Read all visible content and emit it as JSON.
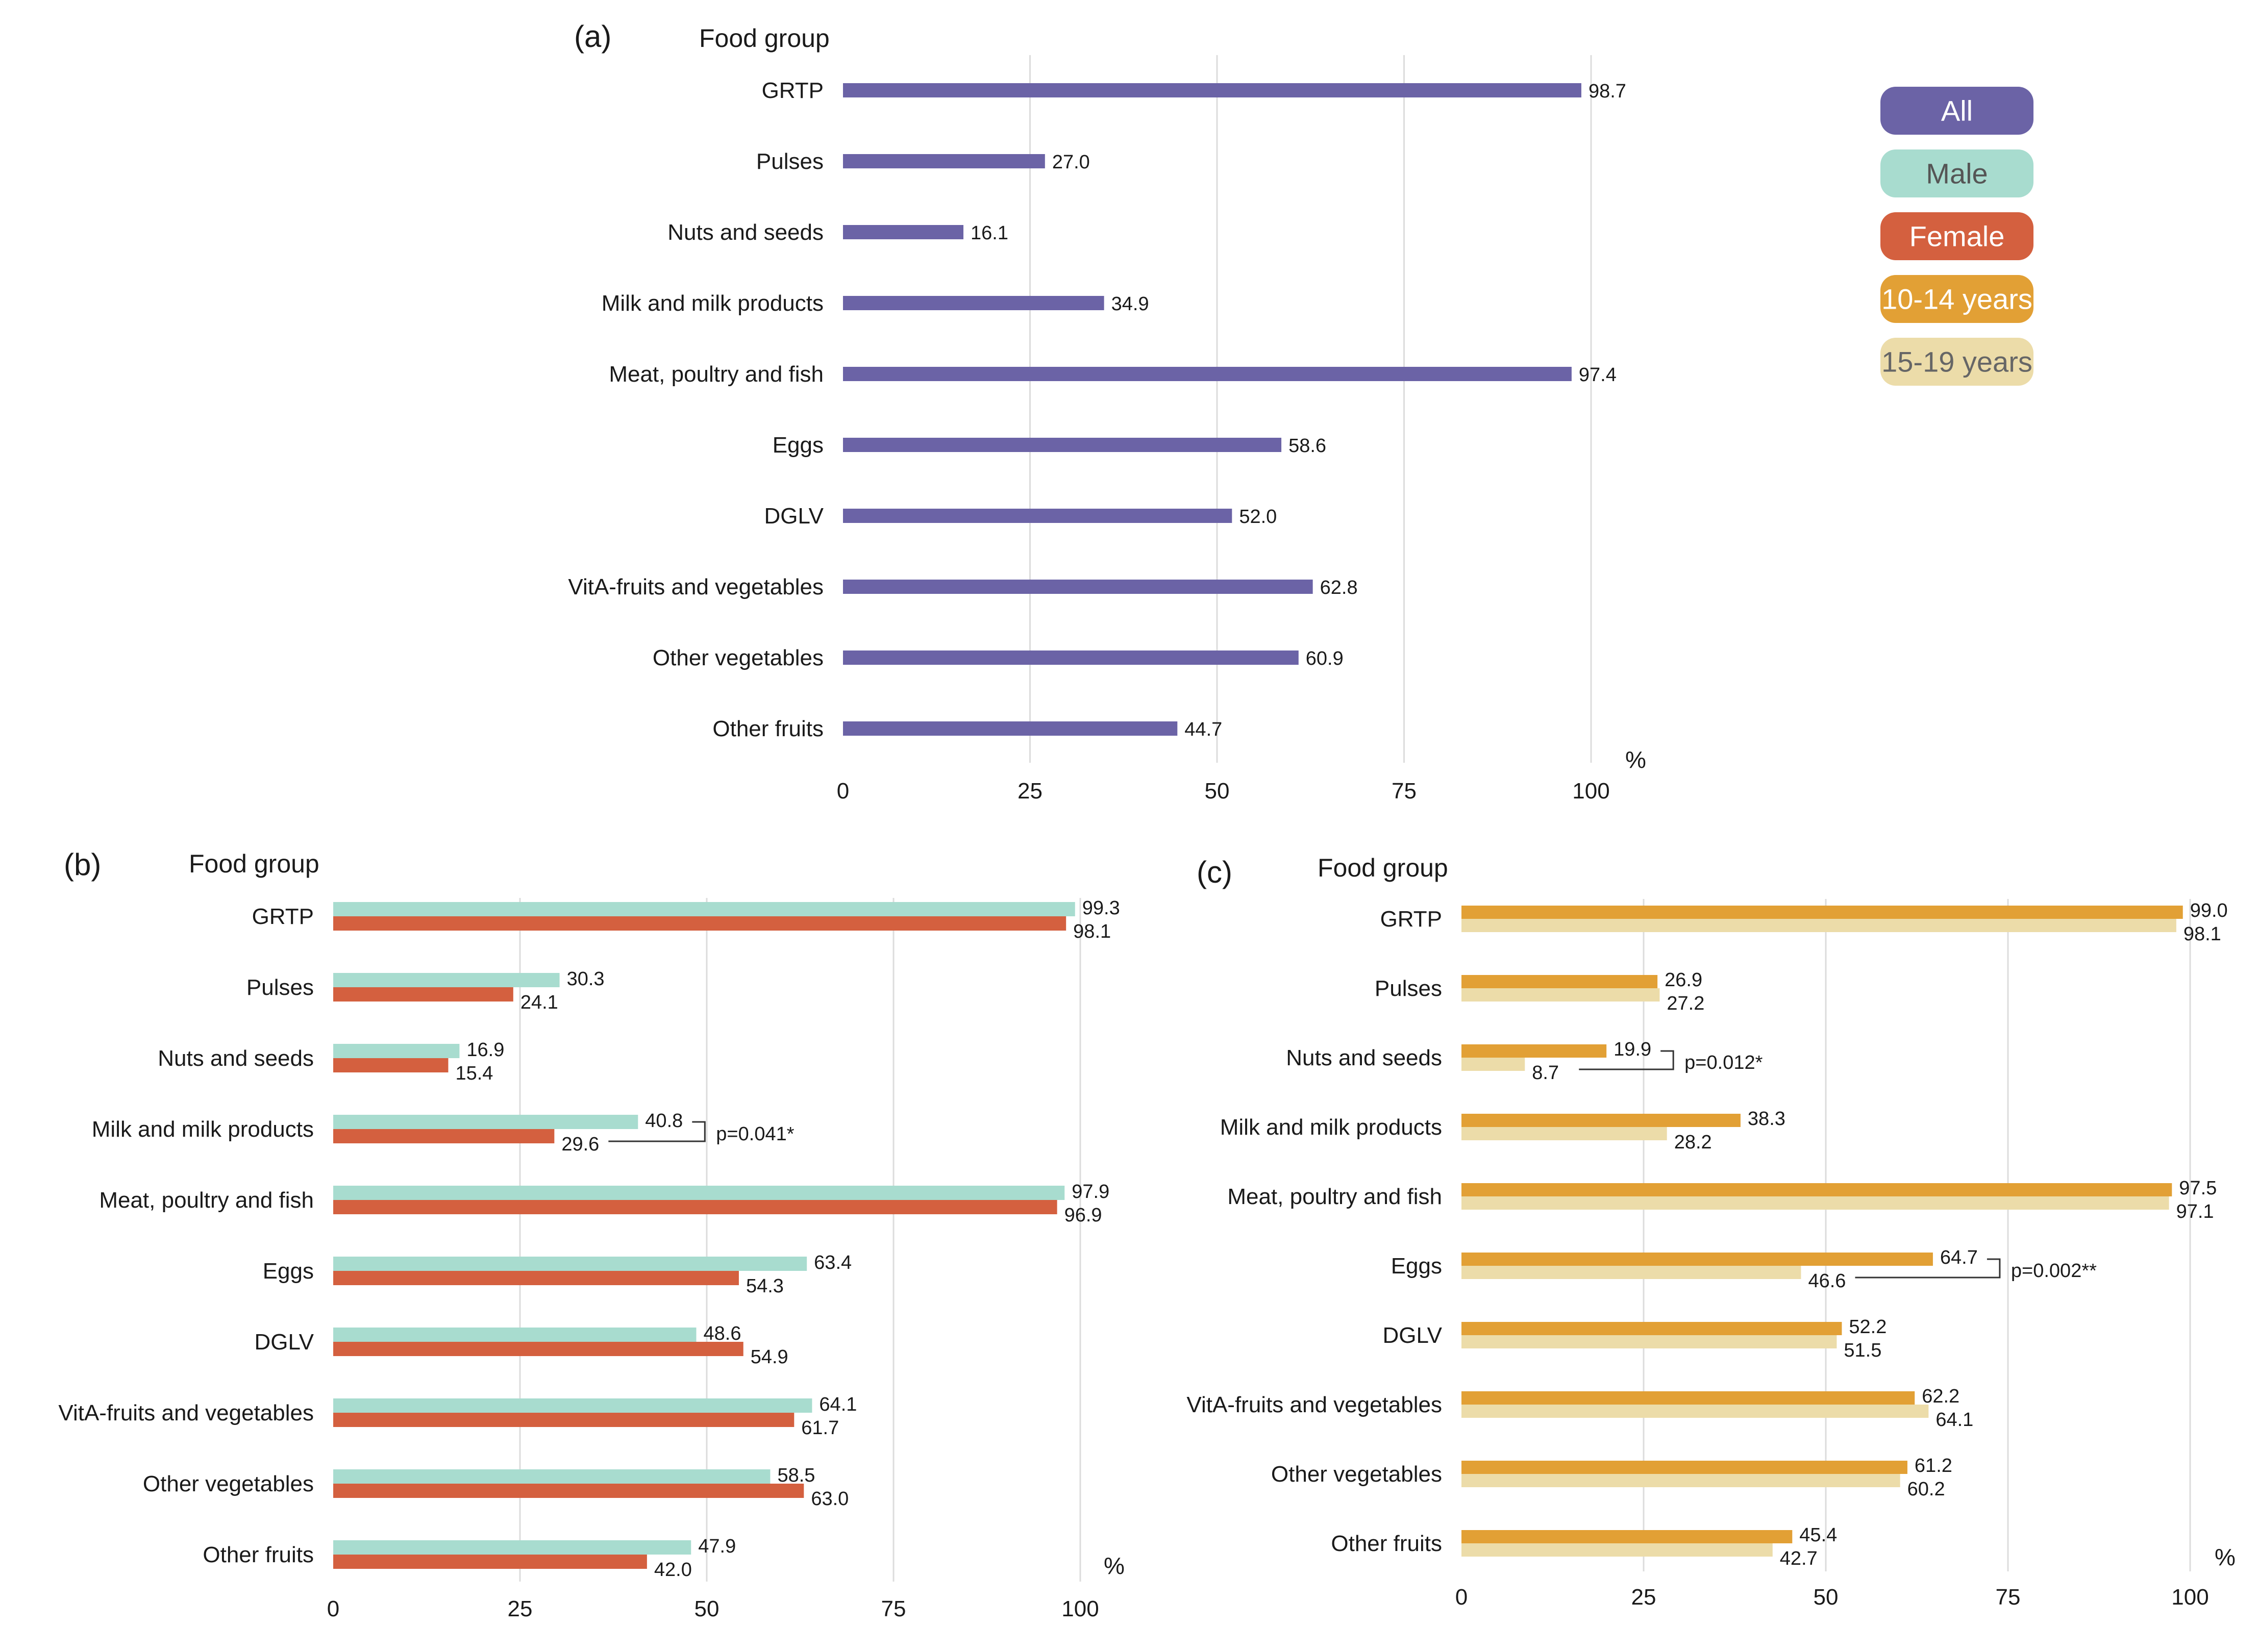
{
  "legend": [
    {
      "label": "All",
      "color": "#6b63a6",
      "text_color": "#ffffff"
    },
    {
      "label": "Male",
      "color": "#a8dccf",
      "text_color": "#555555"
    },
    {
      "label": "Female",
      "color": "#d4603f",
      "text_color": "#ffffff"
    },
    {
      "label": "10-14 years",
      "color": "#e2a035",
      "text_color": "#ffffff"
    },
    {
      "label": "15-19 years",
      "color": "#ecdca9",
      "text_color": "#666666"
    }
  ],
  "chart_data": [
    {
      "id": "a",
      "panel_label": "(a)",
      "type": "bar",
      "orientation": "horizontal",
      "ylabel": "Food group",
      "xlabel": "%",
      "xlim": [
        0,
        100
      ],
      "xticks": [
        0,
        25,
        50,
        75,
        100
      ],
      "categories": [
        "GRTP",
        "Pulses",
        "Nuts and seeds",
        "Milk and milk products",
        "Meat, poultry and fish",
        "Eggs",
        "DGLV",
        "VitA-fruits and vegetables",
        "Other vegetables",
        "Other fruits"
      ],
      "series": [
        {
          "name": "All",
          "color": "#6b63a6",
          "values": [
            98.7,
            27.0,
            16.1,
            34.9,
            97.4,
            58.6,
            52.0,
            62.8,
            60.9,
            44.7
          ]
        }
      ],
      "annotations": []
    },
    {
      "id": "b",
      "panel_label": "(b)",
      "type": "bar",
      "orientation": "horizontal",
      "ylabel": "Food group",
      "xlabel": "%",
      "xlim": [
        0,
        100
      ],
      "xticks": [
        0,
        25,
        50,
        75,
        100
      ],
      "categories": [
        "GRTP",
        "Pulses",
        "Nuts and seeds",
        "Milk and milk products",
        "Meat, poultry and fish",
        "Eggs",
        "DGLV",
        "VitA-fruits and vegetables",
        "Other vegetables",
        "Other fruits"
      ],
      "series": [
        {
          "name": "Male",
          "color": "#a8dccf",
          "values": [
            99.3,
            30.3,
            16.9,
            40.8,
            97.9,
            63.4,
            48.6,
            64.1,
            58.5,
            47.9
          ]
        },
        {
          "name": "Female",
          "color": "#d4603f",
          "values": [
            98.1,
            24.1,
            15.4,
            29.6,
            96.9,
            54.3,
            54.9,
            61.7,
            63.0,
            42.0
          ]
        }
      ],
      "annotations": [
        {
          "category_index": 3,
          "text": "p=0.041*"
        }
      ]
    },
    {
      "id": "c",
      "panel_label": "(c)",
      "type": "bar",
      "orientation": "horizontal",
      "ylabel": "Food group",
      "xlabel": "%",
      "xlim": [
        0,
        100
      ],
      "xticks": [
        0,
        25,
        50,
        75,
        100
      ],
      "categories": [
        "GRTP",
        "Pulses",
        "Nuts and seeds",
        "Milk and milk products",
        "Meat, poultry and fish",
        "Eggs",
        "DGLV",
        "VitA-fruits and vegetables",
        "Other vegetables",
        "Other fruits"
      ],
      "series": [
        {
          "name": "10-14 years",
          "color": "#e2a035",
          "values": [
            99.0,
            26.9,
            19.9,
            38.3,
            97.5,
            64.7,
            52.2,
            62.2,
            61.2,
            45.4
          ]
        },
        {
          "name": "15-19 years",
          "color": "#ecdca9",
          "values": [
            98.1,
            27.2,
            8.7,
            28.2,
            97.1,
            46.6,
            51.5,
            64.1,
            60.2,
            42.7
          ]
        }
      ],
      "annotations": [
        {
          "category_index": 2,
          "text": "p=0.012*"
        },
        {
          "category_index": 5,
          "text": "p=0.002**"
        }
      ]
    }
  ]
}
